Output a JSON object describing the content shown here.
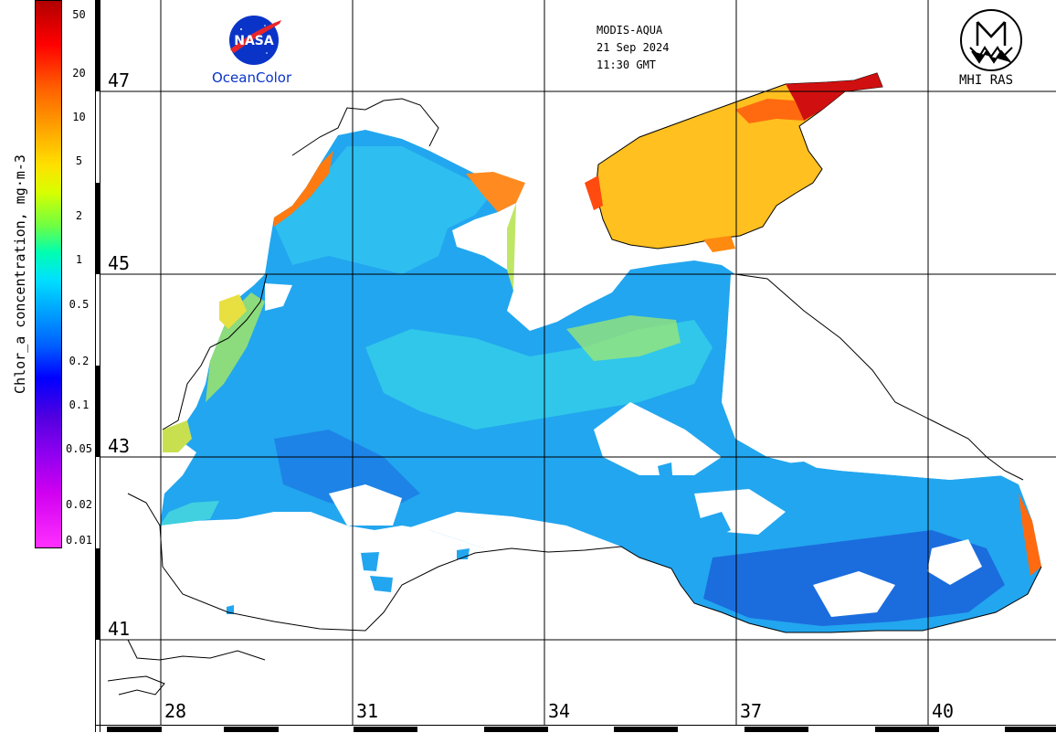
{
  "colorbar": {
    "label": "Chlor_a concentration, mg·m-3",
    "ticks": [
      {
        "label": "50",
        "value": 50
      },
      {
        "label": "20",
        "value": 20
      },
      {
        "label": "10",
        "value": 10
      },
      {
        "label": "5",
        "value": 5
      },
      {
        "label": "2",
        "value": 2
      },
      {
        "label": "1",
        "value": 1
      },
      {
        "label": "0.5",
        "value": 0.5
      },
      {
        "label": "0.2",
        "value": 0.2
      },
      {
        "label": "0.1",
        "value": 0.1
      },
      {
        "label": "0.05",
        "value": 0.05
      },
      {
        "label": "0.02",
        "value": 0.02
      },
      {
        "label": "0.01",
        "value": 0.01
      }
    ]
  },
  "header": {
    "sensor": "MODIS-AQUA",
    "date": "21 Sep 2024",
    "time": "11:30 GMT"
  },
  "logos": {
    "nasa_text": "NASA",
    "nasa_caption": "OceanColor",
    "mhi_caption": "MHI RAS"
  },
  "grid": {
    "latitudes": [
      "47",
      "45",
      "43",
      "41"
    ],
    "longitudes": [
      "28",
      "31",
      "34",
      "37",
      "40"
    ]
  },
  "colors": {
    "nasa_blue": "#0a34c8",
    "nasa_red": "#e8262a",
    "low_chl": "#1e90ff",
    "mid_chl": "#00e0ff",
    "high_chl": "#ffc020",
    "very_high_chl": "#d01010"
  }
}
